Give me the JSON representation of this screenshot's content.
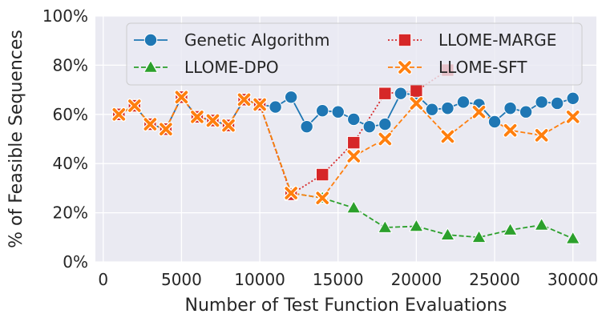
{
  "chart_data": {
    "type": "line",
    "title": "",
    "xlabel": "Number of Test Function Evaluations",
    "ylabel": "% of Feasible Sequences",
    "xlim": [
      -500,
      31500
    ],
    "ylim": [
      0,
      100
    ],
    "xticks": [
      0,
      5000,
      10000,
      15000,
      20000,
      25000,
      30000
    ],
    "xtick_labels": [
      "0",
      "5000",
      "10000",
      "15000",
      "20000",
      "25000",
      "30000"
    ],
    "yticks": [
      0,
      20,
      40,
      60,
      80,
      100
    ],
    "ytick_labels": [
      "0%",
      "20%",
      "40%",
      "60%",
      "80%",
      "100%"
    ],
    "grid": true,
    "legend_position": "top-right",
    "series": [
      {
        "name": "Genetic Algorithm",
        "color": "#1f77b4",
        "marker": "circle",
        "linestyle": "solid",
        "x": [
          1000,
          2000,
          3000,
          4000,
          5000,
          6000,
          7000,
          8000,
          9000,
          10000,
          11000,
          12000,
          13000,
          14000,
          15000,
          16000,
          17000,
          18000,
          19000,
          20000,
          21000,
          22000,
          23000,
          24000,
          25000,
          26000,
          27000,
          28000,
          29000,
          30000
        ],
        "y": [
          60,
          63.5,
          56,
          54,
          67,
          59,
          57.5,
          55.5,
          66,
          64,
          63,
          67,
          55,
          61.5,
          61,
          58,
          55,
          56,
          68.5,
          68,
          62,
          62.5,
          65,
          64,
          57,
          62.5,
          61,
          65,
          64.5,
          66.5
        ]
      },
      {
        "name": "LLOME-DPO",
        "color": "#2ca02c",
        "marker": "triangle",
        "linestyle": "dashed",
        "x": [
          1000,
          2000,
          3000,
          4000,
          5000,
          6000,
          7000,
          8000,
          9000,
          10000,
          12000,
          14000,
          16000,
          18000,
          20000,
          22000,
          24000,
          26000,
          28000,
          30000
        ],
        "y": [
          60,
          63.5,
          56,
          54,
          67,
          59,
          57.5,
          55.5,
          66,
          64,
          28,
          26,
          22,
          14,
          14.5,
          11,
          10,
          13,
          15,
          9.5
        ]
      },
      {
        "name": "LLOME-MARGE",
        "color": "#d62728",
        "marker": "square",
        "linestyle": "dotted",
        "x": [
          1000,
          2000,
          3000,
          4000,
          5000,
          6000,
          7000,
          8000,
          9000,
          10000,
          12000,
          14000,
          16000,
          18000,
          20000,
          22000
        ],
        "y": [
          60,
          63.5,
          56,
          54,
          67,
          59,
          57.5,
          55.5,
          66,
          64,
          27.5,
          35.5,
          48.5,
          68.5,
          69.5,
          78
        ]
      },
      {
        "name": "LLOME-SFT",
        "color": "#ff7f0e",
        "marker": "x",
        "linestyle": "dashed",
        "x": [
          1000,
          2000,
          3000,
          4000,
          5000,
          6000,
          7000,
          8000,
          9000,
          10000,
          12000,
          14000,
          16000,
          18000,
          20000,
          22000,
          24000,
          26000,
          28000,
          30000
        ],
        "y": [
          60,
          63.5,
          56,
          54,
          67,
          59,
          57.5,
          55.5,
          66,
          64,
          28,
          26,
          43,
          50,
          64.5,
          51,
          61,
          53.5,
          51.5,
          59
        ]
      }
    ]
  }
}
